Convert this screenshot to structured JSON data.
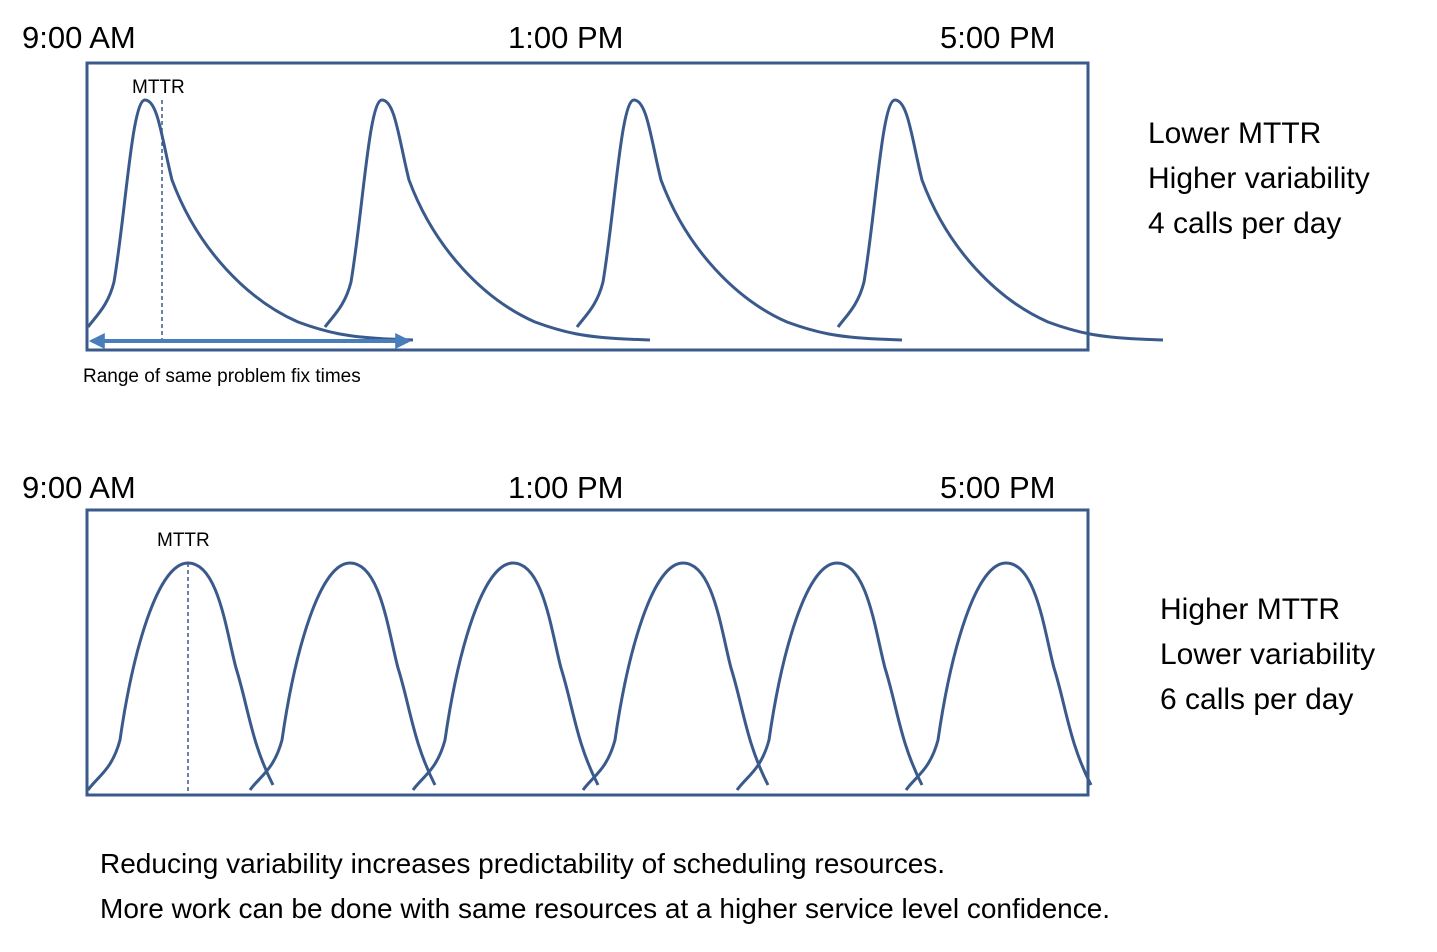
{
  "panels": [
    {
      "time_labels": [
        "9:00 AM",
        "1:00 PM",
        "5:00 PM"
      ],
      "mttr_label": "MTTR",
      "range_label": "Range of same problem fix times",
      "description": [
        "Lower MTTR",
        "Higher variability",
        "4 calls per day"
      ]
    },
    {
      "time_labels": [
        "9:00 AM",
        "1:00 PM",
        "5:00 PM"
      ],
      "mttr_label": "MTTR",
      "description": [
        "Higher MTTR",
        "Lower variability",
        "6 calls per day"
      ]
    }
  ],
  "footer": [
    "Reducing variability increases predictability of scheduling resources.",
    "More work can be done with same resources at a higher service level confidence."
  ]
}
